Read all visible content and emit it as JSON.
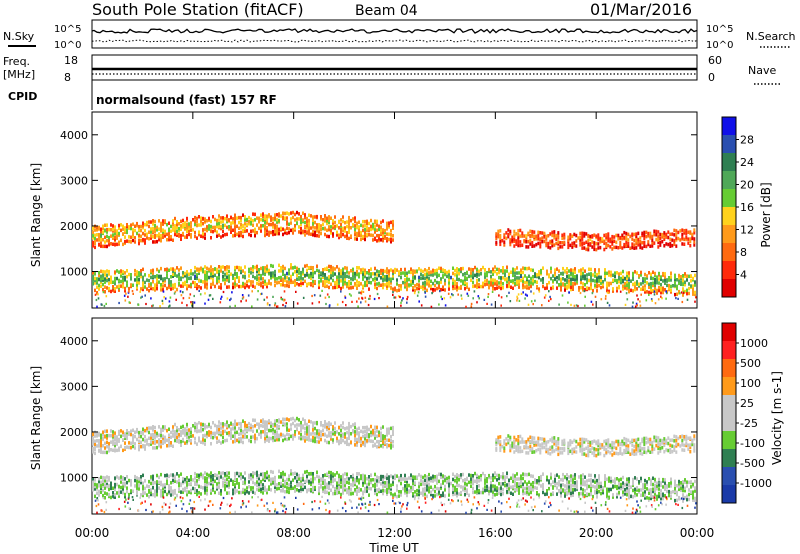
{
  "header": {
    "station": "South Pole Station (fitACF)",
    "beam": "Beam 04",
    "date": "01/Mar/2016"
  },
  "noise_panel": {
    "left_label": "N.Sky",
    "right_label": "N.Search",
    "left_ticks": [
      "10^5",
      "10^0"
    ],
    "right_ticks": [
      "10^5",
      "10^0"
    ]
  },
  "freq_panel": {
    "left_label_1": "Freq.",
    "left_label_2": "[MHz]",
    "right_label": "Nave",
    "left_ticks": [
      "18",
      "8"
    ],
    "right_ticks": [
      "60",
      "0"
    ],
    "cpid_label": "CPID",
    "cpid_text": "normalsound (fast) 157 RF"
  },
  "colors": {
    "power_scale": [
      "#1010e8",
      "#2a4fb0",
      "#2f7f52",
      "#4fa858",
      "#66cc33",
      "#ffd21c",
      "#ff9a1a",
      "#ff6a10",
      "#ff2a0a",
      "#e00000"
    ],
    "velocity_scale": [
      "#e00000",
      "#ff2020",
      "#ff6a10",
      "#ff9a1a",
      "#c8c8c8",
      "#c8c8c8",
      "#66cc33",
      "#2f7f52",
      "#2a4fb0",
      "#1a3aa8"
    ]
  },
  "chart_data": [
    {
      "type": "heatmap",
      "name": "power",
      "xlabel": "",
      "ylabel": "Slant Range [km]",
      "x_ticks": [
        "00:00",
        "04:00",
        "08:00",
        "12:00",
        "16:00",
        "20:00",
        "00:00"
      ],
      "x_range_hours": [
        0,
        24
      ],
      "y_ticks": [
        1000,
        2000,
        3000,
        4000
      ],
      "ylim": [
        200,
        4500
      ],
      "colorbar_label": "Power [dB]",
      "colorbar_ticks": [
        "28",
        "24",
        "20",
        "16",
        "12",
        "8",
        "4"
      ],
      "colorbar_range": [
        0,
        30
      ],
      "echo_bands": [
        {
          "t_start": 0,
          "t_end": 24,
          "range_center_km": [
            800,
            900,
            950,
            850,
            900,
            850,
            750
          ],
          "half_width_km": 250,
          "level_db": 20
        },
        {
          "t_start": 0,
          "t_end": 12,
          "range_center_km": [
            1800,
            2000,
            2100,
            1900
          ],
          "half_width_km": 250,
          "level_db": 14
        },
        {
          "t_start": 16,
          "t_end": 24,
          "range_center_km": [
            1800,
            1700,
            1800
          ],
          "half_width_km": 200,
          "level_db": 8
        }
      ]
    },
    {
      "type": "heatmap",
      "name": "velocity",
      "xlabel": "Time UT",
      "ylabel": "Slant Range [km]",
      "x_ticks": [
        "00:00",
        "04:00",
        "08:00",
        "12:00",
        "16:00",
        "20:00",
        "00:00"
      ],
      "x_range_hours": [
        0,
        24
      ],
      "y_ticks": [
        1000,
        2000,
        3000,
        4000
      ],
      "ylim": [
        200,
        4500
      ],
      "colorbar_label": "Velocity [m s-1]",
      "colorbar_ticks": [
        "1000",
        "500",
        "100",
        "25",
        "-25",
        "-100",
        "-500",
        "-1000"
      ],
      "colorbar_range": [
        -1000,
        1000
      ],
      "echo_bands": [
        {
          "t_start": 0,
          "t_end": 24,
          "range_center_km": [
            800,
            900,
            950,
            850,
            900,
            850,
            750
          ],
          "half_width_km": 250,
          "velocity_ms": -200
        },
        {
          "t_start": 0,
          "t_end": 12,
          "range_center_km": [
            1800,
            2000,
            2100,
            1900
          ],
          "half_width_km": 250,
          "velocity_ms": 0
        },
        {
          "t_start": 16,
          "t_end": 24,
          "range_center_km": [
            1800,
            1700,
            1800
          ],
          "half_width_km": 200,
          "velocity_ms": 0
        }
      ]
    }
  ]
}
